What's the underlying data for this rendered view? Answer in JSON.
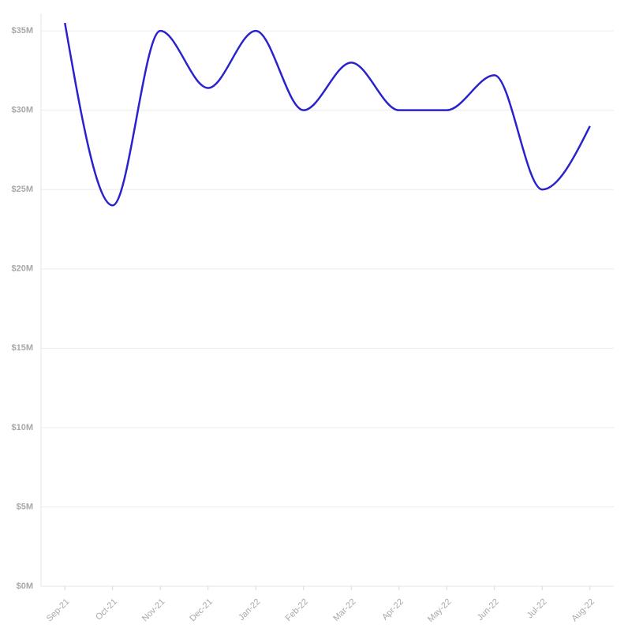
{
  "chart_data": {
    "type": "line",
    "categories": [
      "Sep-21",
      "Oct-21",
      "Nov-21",
      "Dec-21",
      "Jan-22",
      "Feb-22",
      "Mar-22",
      "Apr-22",
      "May-22",
      "Jun-22",
      "Jul-22",
      "Aug-22"
    ],
    "series": [
      {
        "color": "#2a22cc",
        "values": [
          35500000,
          24000000,
          35000000,
          31400000,
          35000000,
          30000000,
          33000000,
          30000000,
          30000000,
          32200000,
          25000000,
          29000000
        ]
      }
    ],
    "ylim": [
      0,
      36100000
    ],
    "yticks": [
      {
        "value": 0,
        "label": "$0M"
      },
      {
        "value": 5000000,
        "label": "$5M"
      },
      {
        "value": 10000000,
        "label": "$10M"
      },
      {
        "value": 15000000,
        "label": "$15M"
      },
      {
        "value": 20000000,
        "label": "$20M"
      },
      {
        "value": 25000000,
        "label": "$25M"
      },
      {
        "value": 30000000,
        "label": "$30M"
      },
      {
        "value": 35000000,
        "label": "$35M"
      }
    ],
    "grid": true
  }
}
